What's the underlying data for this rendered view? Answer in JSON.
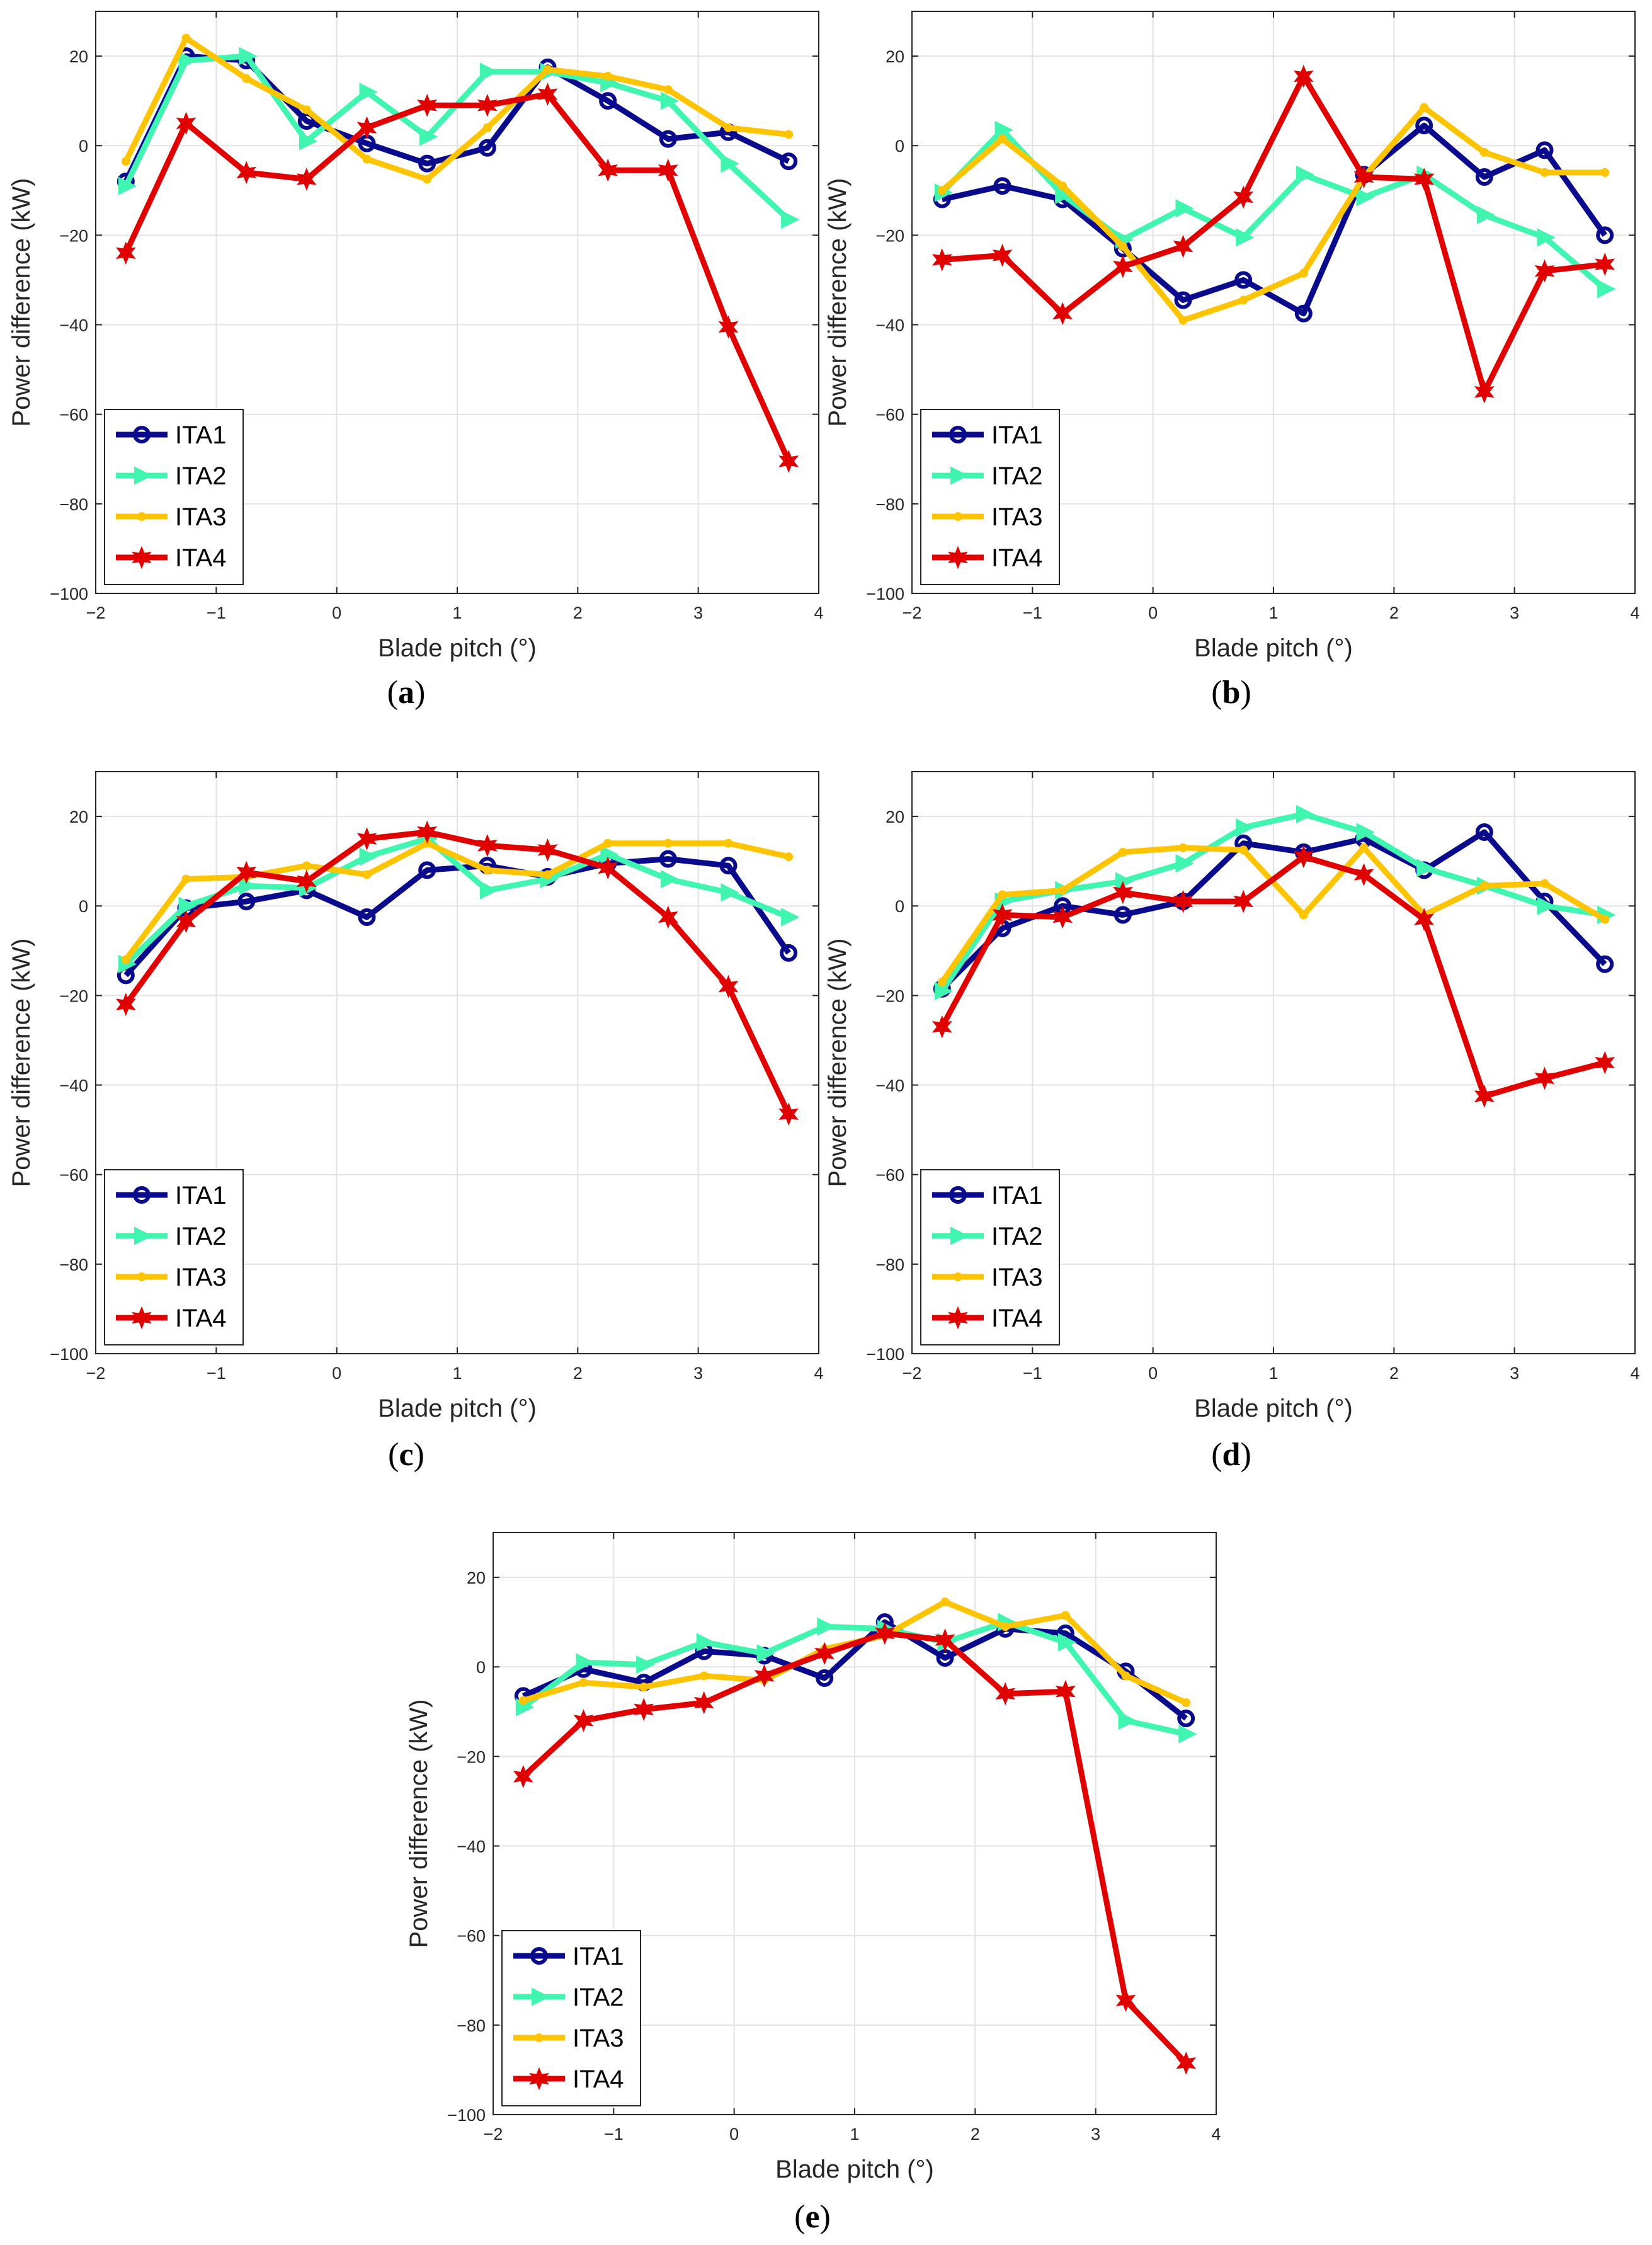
{
  "charts": [
    {
      "id": "a",
      "caption_letter": "a",
      "xlabel": "Blade pitch (°)",
      "ylabel": "Power difference (kW)",
      "xlim": [
        -2,
        4
      ],
      "ylim": [
        -100,
        30
      ],
      "xticks": [
        -2,
        -1,
        0,
        1,
        2,
        3,
        4
      ],
      "yticks": [
        -100,
        -80,
        -60,
        -40,
        -20,
        0,
        20
      ],
      "series": [
        {
          "name": "ITA1",
          "y": [
            -8,
            20,
            19,
            5.5,
            0.5,
            -4,
            -0.5,
            17.5,
            10,
            1.5,
            3,
            -3.5
          ]
        },
        {
          "name": "ITA2",
          "y": [
            -9,
            19,
            20,
            1,
            12,
            2,
            16.5,
            16.5,
            14,
            10,
            -4,
            -16.5
          ]
        },
        {
          "name": "ITA3",
          "y": [
            -3.5,
            24,
            15,
            8,
            -3,
            -7.5,
            4,
            17,
            15.5,
            12.5,
            4,
            2.5
          ]
        },
        {
          "name": "ITA4",
          "y": [
            -24,
            5,
            -6,
            -7.5,
            4,
            9,
            9,
            11.5,
            -5.5,
            -5.5,
            -40.5,
            -70.5
          ]
        }
      ]
    },
    {
      "id": "b",
      "caption_letter": "b",
      "xlabel": "Blade pitch (°)",
      "ylabel": "Power difference (kW)",
      "xlim": [
        -2,
        4
      ],
      "ylim": [
        -100,
        30
      ],
      "xticks": [
        -2,
        -1,
        0,
        1,
        2,
        3,
        4
      ],
      "yticks": [
        -100,
        -80,
        -60,
        -40,
        -20,
        0,
        20
      ],
      "series": [
        {
          "name": "ITA1",
          "y": [
            -12,
            -9,
            -12,
            -23,
            -34.5,
            -30,
            -37.5,
            -6.5,
            4.5,
            -7,
            -1,
            -20
          ]
        },
        {
          "name": "ITA2",
          "y": [
            -10.5,
            3.5,
            -11,
            -21,
            -14,
            -20.5,
            -6.5,
            -11.5,
            -6.5,
            -15.5,
            -20.5,
            -32
          ]
        },
        {
          "name": "ITA3",
          "y": [
            -10,
            1.5,
            -9,
            -22.5,
            -39,
            -34.5,
            -28.5,
            -7,
            8.5,
            -1.5,
            -6,
            -6
          ]
        },
        {
          "name": "ITA4",
          "y": [
            -25.5,
            -24.5,
            -37.5,
            -27,
            -22.5,
            -11.5,
            15.5,
            -7,
            -7.5,
            -55,
            -28,
            -26.5
          ]
        }
      ]
    },
    {
      "id": "c",
      "caption_letter": "c",
      "xlabel": "Blade pitch (°)",
      "ylabel": "Power difference (kW)",
      "xlim": [
        -2,
        4
      ],
      "ylim": [
        -100,
        30
      ],
      "xticks": [
        -2,
        -1,
        0,
        1,
        2,
        3,
        4
      ],
      "yticks": [
        -100,
        -80,
        -60,
        -40,
        -20,
        0,
        20
      ],
      "series": [
        {
          "name": "ITA1",
          "y": [
            -15.5,
            -0.5,
            1,
            3.5,
            -2.5,
            8,
            9,
            6.5,
            9.5,
            10.5,
            9,
            -10.5
          ]
        },
        {
          "name": "ITA2",
          "y": [
            -13,
            0,
            4.5,
            4,
            11,
            15,
            3.5,
            6,
            11.5,
            6,
            3,
            -2.5
          ]
        },
        {
          "name": "ITA3",
          "y": [
            -12,
            6,
            6.5,
            9,
            7,
            14,
            8,
            7,
            14,
            14,
            14,
            11
          ]
        },
        {
          "name": "ITA4",
          "y": [
            -22,
            -3.5,
            7.5,
            5.5,
            15,
            16.5,
            13.5,
            12.5,
            8.5,
            -2.5,
            -18,
            -46.5
          ]
        }
      ]
    },
    {
      "id": "d",
      "caption_letter": "d",
      "xlabel": "Blade pitch (°)",
      "ylabel": "Power difference (kW)",
      "xlim": [
        -2,
        4
      ],
      "ylim": [
        -100,
        30
      ],
      "xticks": [
        -2,
        -1,
        0,
        1,
        2,
        3,
        4
      ],
      "yticks": [
        -100,
        -80,
        -60,
        -40,
        -20,
        0,
        20
      ],
      "series": [
        {
          "name": "ITA1",
          "y": [
            -18.5,
            -5,
            0,
            -2,
            1,
            14,
            12,
            15,
            8,
            16.5,
            1,
            -13
          ]
        },
        {
          "name": "ITA2",
          "y": [
            -19,
            1,
            3.5,
            5.5,
            9.5,
            17.5,
            20.5,
            16.5,
            8.5,
            4.5,
            0,
            -2
          ]
        },
        {
          "name": "ITA3",
          "y": [
            -17,
            2.5,
            3.5,
            12,
            13,
            12.5,
            -2,
            13,
            -2,
            4.5,
            5,
            -3
          ]
        },
        {
          "name": "ITA4",
          "y": [
            -27,
            -2,
            -2.5,
            3,
            1,
            1,
            11,
            7,
            -3,
            -42.5,
            -38.5,
            -35
          ]
        }
      ]
    },
    {
      "id": "e",
      "caption_letter": "e",
      "xlabel": "Blade pitch (°)",
      "ylabel": "Power difference (kW)",
      "xlim": [
        -2,
        4
      ],
      "ylim": [
        -100,
        30
      ],
      "xticks": [
        -2,
        -1,
        0,
        1,
        2,
        3,
        4
      ],
      "yticks": [
        -100,
        -80,
        -60,
        -40,
        -20,
        0,
        20
      ],
      "series": [
        {
          "name": "ITA1",
          "y": [
            -6.5,
            -0.5,
            -3.5,
            3.5,
            2.5,
            -2.5,
            10,
            2,
            8.5,
            7.5,
            -1,
            -11.5
          ]
        },
        {
          "name": "ITA2",
          "y": [
            -9,
            1,
            0.5,
            5.5,
            3,
            9,
            8.5,
            5.5,
            10,
            5.5,
            -12,
            -15
          ]
        },
        {
          "name": "ITA3",
          "y": [
            -7.5,
            -3.5,
            -4.5,
            -2,
            -3,
            4,
            7,
            14.5,
            9,
            11.5,
            -2,
            -8
          ]
        },
        {
          "name": "ITA4",
          "y": [
            -24.5,
            -12,
            -9.5,
            -8,
            -2,
            3,
            7.5,
            6,
            -6,
            -5.5,
            -74.5,
            -88.5
          ]
        }
      ]
    }
  ],
  "chart_data": [
    {
      "type": "line",
      "x": [
        -1.75,
        -1.25,
        -0.75,
        -0.25,
        0.25,
        0.75,
        1.25,
        1.75,
        2.25,
        2.75,
        3.25,
        3.75
      ],
      "panel": "a"
    },
    {
      "type": "line",
      "x": [
        -1.75,
        -1.25,
        -0.75,
        -0.25,
        0.25,
        0.75,
        1.25,
        1.75,
        2.25,
        2.75,
        3.25,
        3.75
      ],
      "panel": "b"
    },
    {
      "type": "line",
      "x": [
        -1.75,
        -1.25,
        -0.75,
        -0.25,
        0.25,
        0.75,
        1.25,
        1.75,
        2.25,
        2.75,
        3.25,
        3.75
      ],
      "panel": "c"
    },
    {
      "type": "line",
      "x": [
        -1.75,
        -1.25,
        -0.75,
        -0.25,
        0.25,
        0.75,
        1.25,
        1.75,
        2.25,
        2.75,
        3.25,
        3.75
      ],
      "panel": "d"
    },
    {
      "type": "line",
      "x": [
        -1.75,
        -1.25,
        -0.75,
        -0.25,
        0.25,
        0.75,
        1.25,
        1.75,
        2.25,
        2.75,
        3.25,
        3.75
      ],
      "panel": "e"
    }
  ],
  "styles": {
    "ITA1": {
      "color": "#0a0a8c",
      "marker": "circle"
    },
    "ITA2": {
      "color": "#40f5b0",
      "marker": "triangle"
    },
    "ITA3": {
      "color": "#ffc400",
      "marker": "dot"
    },
    "ITA4": {
      "color": "#e00000",
      "marker": "star"
    }
  },
  "grid": true,
  "legend_position": "bottom-left"
}
